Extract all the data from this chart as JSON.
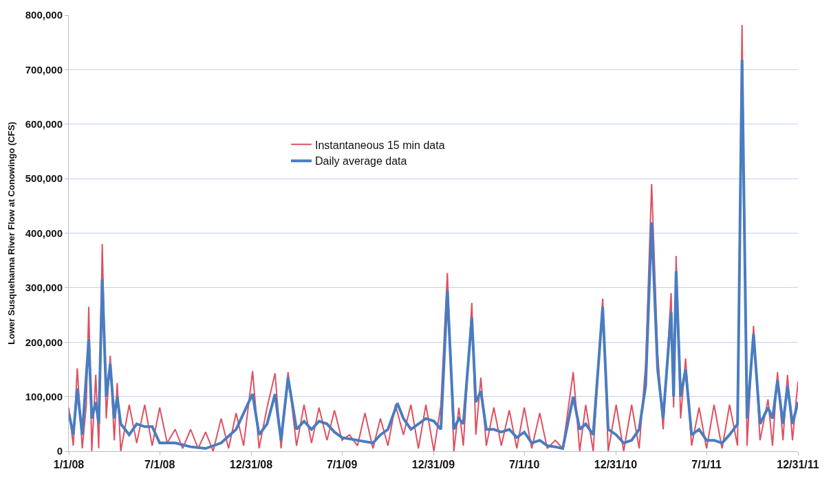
{
  "chart_data": {
    "type": "line",
    "ylabel": "Lower Susquehanna River Flow at Conowingo (CFS)",
    "xlim": [
      "2008-01-01",
      "2011-12-31"
    ],
    "xticks": [
      {
        "value": "2008-01-01",
        "label": "1/1/08"
      },
      {
        "value": "2008-07-01",
        "label": "7/1/08"
      },
      {
        "value": "2008-12-31",
        "label": "12/31/08"
      },
      {
        "value": "2009-07-01",
        "label": "7/1/09"
      },
      {
        "value": "2009-12-31",
        "label": "12/31/09"
      },
      {
        "value": "2010-07-01",
        "label": "7/1/10"
      },
      {
        "value": "2010-12-31",
        "label": "12/31/10"
      },
      {
        "value": "2011-07-01",
        "label": "7/1/11"
      },
      {
        "value": "2011-12-31",
        "label": "12/31/11"
      }
    ],
    "ylim": [
      0,
      800000
    ],
    "yticks": [
      0,
      {
        "value": 100000,
        "label": "100,000"
      },
      {
        "value": 200000,
        "label": "200,000"
      },
      {
        "value": 300000,
        "label": "300,000"
      },
      {
        "value": 400000,
        "label": "400,000"
      },
      {
        "value": 500000,
        "label": "500,000"
      },
      {
        "value": 600000,
        "label": "600,000"
      },
      {
        "value": 700000,
        "label": "700,000"
      },
      {
        "value": 800000,
        "label": "800,000"
      }
    ],
    "grid": "y",
    "legend": "top",
    "marker": "none",
    "line_style": "solid",
    "series": [
      {
        "name": "Instantaneous 15 min data",
        "color": "#e05060",
        "x": [
          "2008-01-01",
          "2008-01-10",
          "2008-01-18",
          "2008-01-28",
          "2008-02-05",
          "2008-02-10",
          "2008-02-16",
          "2008-02-24",
          "2008-03-01",
          "2008-03-08",
          "2008-03-16",
          "2008-03-24",
          "2008-04-01",
          "2008-04-07",
          "2008-04-14",
          "2008-05-01",
          "2008-05-16",
          "2008-06-01",
          "2008-06-16",
          "2008-07-01",
          "2008-07-16",
          "2008-08-01",
          "2008-08-16",
          "2008-09-01",
          "2008-09-16",
          "2008-10-01",
          "2008-10-16",
          "2008-11-01",
          "2008-11-16",
          "2008-12-01",
          "2008-12-16",
          "2009-01-03",
          "2009-01-16",
          "2009-02-01",
          "2009-02-17",
          "2009-03-01",
          "2009-03-15",
          "2009-04-01",
          "2009-04-16",
          "2009-05-01",
          "2009-05-16",
          "2009-06-01",
          "2009-06-16",
          "2009-07-01",
          "2009-07-16",
          "2009-08-01",
          "2009-08-16",
          "2009-09-01",
          "2009-09-16",
          "2009-10-01",
          "2009-10-16",
          "2009-11-01",
          "2009-11-16",
          "2009-12-01",
          "2009-12-16",
          "2010-01-01",
          "2010-01-15",
          "2010-01-28",
          "2010-02-10",
          "2010-02-20",
          "2010-03-01",
          "2010-03-18",
          "2010-03-26",
          "2010-04-05",
          "2010-04-16",
          "2010-05-01",
          "2010-05-16",
          "2010-06-01",
          "2010-06-16",
          "2010-07-01",
          "2010-07-16",
          "2010-08-01",
          "2010-08-16",
          "2010-09-01",
          "2010-09-16",
          "2010-10-07",
          "2010-10-20",
          "2010-11-01",
          "2010-11-16",
          "2010-12-05",
          "2010-12-16",
          "2011-01-01",
          "2011-01-16",
          "2011-02-01",
          "2011-02-16",
          "2011-03-01",
          "2011-03-13",
          "2011-03-25",
          "2011-04-05",
          "2011-04-21",
          "2011-04-26",
          "2011-05-01",
          "2011-05-10",
          "2011-05-20",
          "2011-06-01",
          "2011-06-16",
          "2011-07-01",
          "2011-07-16",
          "2011-08-01",
          "2011-08-16",
          "2011-09-01",
          "2011-09-10",
          "2011-09-20",
          "2011-10-03",
          "2011-10-16",
          "2011-11-01",
          "2011-11-10",
          "2011-11-20",
          "2011-12-01",
          "2011-12-10",
          "2011-12-20",
          "2011-12-31"
        ],
        "values": [
          80000,
          10000,
          152000,
          5000,
          85000,
          265000,
          0,
          140000,
          5000,
          380000,
          60000,
          175000,
          20000,
          125000,
          0,
          85000,
          15000,
          85000,
          10000,
          80000,
          15000,
          40000,
          5000,
          40000,
          5000,
          35000,
          0,
          60000,
          5000,
          70000,
          10000,
          147000,
          5000,
          80000,
          143000,
          5000,
          145000,
          10000,
          85000,
          15000,
          80000,
          20000,
          75000,
          20000,
          30000,
          10000,
          70000,
          5000,
          60000,
          10000,
          85000,
          30000,
          85000,
          5000,
          85000,
          0,
          85000,
          327000,
          0,
          80000,
          10000,
          272000,
          30000,
          135000,
          10000,
          80000,
          10000,
          75000,
          5000,
          80000,
          5000,
          70000,
          5000,
          20000,
          5000,
          145000,
          0,
          85000,
          0,
          280000,
          0,
          85000,
          0,
          85000,
          5000,
          160000,
          490000,
          180000,
          40000,
          290000,
          80000,
          358000,
          60000,
          170000,
          10000,
          80000,
          5000,
          85000,
          5000,
          85000,
          10000,
          782000,
          10000,
          230000,
          20000,
          95000,
          10000,
          145000,
          20000,
          140000,
          20000,
          128000
        ]
      },
      {
        "name": "Daily average data",
        "color": "#4a7cc0",
        "x": [
          "2008-01-01",
          "2008-01-10",
          "2008-01-18",
          "2008-01-28",
          "2008-02-10",
          "2008-02-16",
          "2008-02-24",
          "2008-03-01",
          "2008-03-08",
          "2008-03-16",
          "2008-03-24",
          "2008-04-01",
          "2008-04-07",
          "2008-04-14",
          "2008-05-01",
          "2008-05-16",
          "2008-06-01",
          "2008-06-16",
          "2008-07-01",
          "2008-08-01",
          "2008-09-01",
          "2008-10-01",
          "2008-11-01",
          "2008-12-01",
          "2009-01-03",
          "2009-01-16",
          "2009-02-01",
          "2009-02-17",
          "2009-03-01",
          "2009-03-15",
          "2009-04-01",
          "2009-04-16",
          "2009-05-01",
          "2009-05-16",
          "2009-06-01",
          "2009-06-16",
          "2009-07-01",
          "2009-08-01",
          "2009-09-01",
          "2009-09-16",
          "2009-10-01",
          "2009-10-20",
          "2009-11-01",
          "2009-11-16",
          "2009-12-01",
          "2009-12-16",
          "2010-01-01",
          "2010-01-15",
          "2010-01-28",
          "2010-02-10",
          "2010-02-20",
          "2010-03-01",
          "2010-03-18",
          "2010-03-26",
          "2010-04-05",
          "2010-04-16",
          "2010-05-01",
          "2010-05-16",
          "2010-06-01",
          "2010-06-16",
          "2010-07-01",
          "2010-07-16",
          "2010-08-01",
          "2010-08-16",
          "2010-09-01",
          "2010-09-16",
          "2010-10-07",
          "2010-10-20",
          "2010-11-01",
          "2010-11-16",
          "2010-12-05",
          "2010-12-16",
          "2011-01-01",
          "2011-01-16",
          "2011-02-01",
          "2011-02-16",
          "2011-03-01",
          "2011-03-13",
          "2011-03-25",
          "2011-04-05",
          "2011-04-21",
          "2011-04-26",
          "2011-05-01",
          "2011-05-10",
          "2011-05-20",
          "2011-06-01",
          "2011-06-16",
          "2011-07-01",
          "2011-07-16",
          "2011-08-01",
          "2011-08-16",
          "2011-09-01",
          "2011-09-10",
          "2011-09-20",
          "2011-10-03",
          "2011-10-16",
          "2011-11-01",
          "2011-11-10",
          "2011-11-20",
          "2011-12-01",
          "2011-12-10",
          "2011-12-20",
          "2011-12-31"
        ],
        "values": [
          70000,
          30000,
          115000,
          30000,
          205000,
          60000,
          90000,
          50000,
          315000,
          100000,
          160000,
          60000,
          100000,
          50000,
          30000,
          50000,
          45000,
          45000,
          15000,
          15000,
          8000,
          5000,
          15000,
          40000,
          105000,
          30000,
          50000,
          105000,
          20000,
          135000,
          40000,
          55000,
          40000,
          55000,
          50000,
          35000,
          25000,
          20000,
          15000,
          30000,
          40000,
          88000,
          60000,
          40000,
          50000,
          60000,
          55000,
          40000,
          295000,
          40000,
          60000,
          50000,
          245000,
          90000,
          110000,
          40000,
          40000,
          35000,
          40000,
          25000,
          35000,
          15000,
          20000,
          10000,
          8000,
          5000,
          100000,
          40000,
          50000,
          30000,
          265000,
          40000,
          30000,
          15000,
          20000,
          40000,
          120000,
          420000,
          150000,
          60000,
          255000,
          100000,
          330000,
          100000,
          150000,
          30000,
          40000,
          20000,
          20000,
          15000,
          30000,
          50000,
          718000,
          60000,
          215000,
          50000,
          80000,
          60000,
          130000,
          50000,
          120000,
          50000,
          90000
        ]
      }
    ]
  }
}
